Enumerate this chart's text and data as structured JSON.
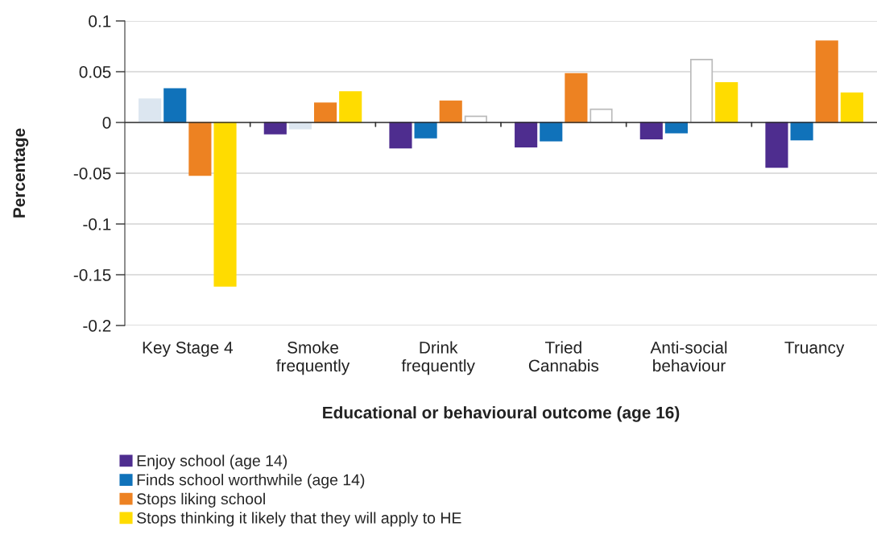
{
  "chart_data": {
    "type": "bar",
    "categories": [
      "Key Stage 4",
      "Smoke\nfrequently",
      "Drink\nfrequently",
      "Tried\nCannabis",
      "Anti-social\nbehaviour",
      "Truancy"
    ],
    "xlabel": "Educational or behavioural outcome (age 16)",
    "ylabel": "Percentage",
    "series": [
      {
        "name": "Enjoy school (age 14)",
        "color": "#4e2d8f",
        "colors": [
          "#dce6f0",
          "#4e2d8f",
          "#4e2d8f",
          "#4e2d8f",
          "#4e2d8f",
          "#4e2d8f"
        ],
        "values": [
          0.023,
          -0.011,
          -0.025,
          -0.024,
          -0.016,
          -0.044
        ]
      },
      {
        "name": "Finds school worthwhile (age 14)",
        "color": "#1072ba",
        "colors": [
          "#1072ba",
          "#dce6f0",
          "#1072ba",
          "#1072ba",
          "#1072ba",
          "#1072ba"
        ],
        "values": [
          0.033,
          -0.006,
          -0.015,
          -0.018,
          -0.01,
          -0.017
        ]
      },
      {
        "name": "Stops liking school",
        "color": "#ed8222",
        "colors": [
          "#ed8222",
          "#ed8222",
          "#ed8222",
          "#ed8222",
          "#ffffff",
          "#ed8222"
        ],
        "values": [
          -0.052,
          0.019,
          0.021,
          0.048,
          0.062,
          0.08
        ]
      },
      {
        "name": "Stops thinking it likely that they will apply to HE",
        "color": "#ffdc00",
        "colors": [
          "#ffdc00",
          "#ffdc00",
          "#ffffff",
          "#ffffff",
          "#ffdc00",
          "#ffdc00"
        ],
        "values": [
          -0.161,
          0.03,
          0.006,
          0.013,
          0.039,
          0.029
        ]
      }
    ],
    "ylim": [
      -0.2,
      0.1
    ],
    "yticks": [
      {
        "value": -0.2,
        "label": "-0.2"
      },
      {
        "value": -0.15,
        "label": "-0.15"
      },
      {
        "value": -0.1,
        "label": "-0.1"
      },
      {
        "value": -0.05,
        "label": "-0.05"
      },
      0,
      0.05,
      0.1
    ],
    "grid": "y",
    "legend": "bottom left"
  }
}
